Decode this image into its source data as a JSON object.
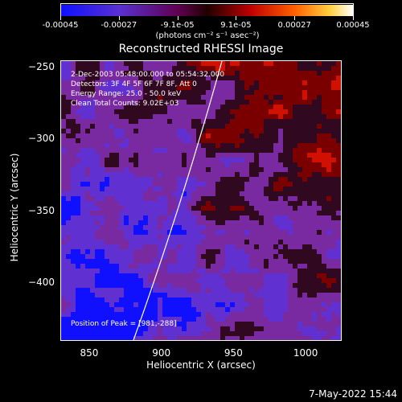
{
  "colorbar": {
    "tick_labels": [
      "-0.00045",
      "-0.00027",
      "-9.1e-05",
      "9.1e-05",
      "0.00027",
      "0.00045"
    ],
    "units_label": "(photons cm⁻² s⁻¹ asec⁻²)"
  },
  "title": "Reconstructed RHESSI Image",
  "info": {
    "time_range": "2-Dec-2003 05:48:00.000 to 05:54:32.000",
    "detectors": "Detectors: 3F 4F 5F 6F 7F 8F, Att 0",
    "energy_range": "Energy Range: 25.0 - 50.0 keV",
    "method_counts": "Clean    Total Counts: 9.02E+03",
    "peak_position": "Position of Peak = [981,-288]"
  },
  "axes": {
    "xlabel": "Heliocentric X (arcsec)",
    "ylabel": "Heliocentric Y (arcsec)",
    "x_ticks": [
      850,
      900,
      950,
      1000
    ],
    "y_ticks": [
      -250,
      -300,
      -350,
      -400
    ],
    "x_range": [
      830,
      1025
    ],
    "y_range": [
      -245,
      -440
    ]
  },
  "colors": {
    "colormap": [
      "#1010ff",
      "#6030d0",
      "#7a2aa0",
      "#300820",
      "#7a0000",
      "#d01000",
      "#ff6000",
      "#ffc040",
      "#ffffe0"
    ]
  },
  "timestamp": "7-May-2022 15:44"
}
